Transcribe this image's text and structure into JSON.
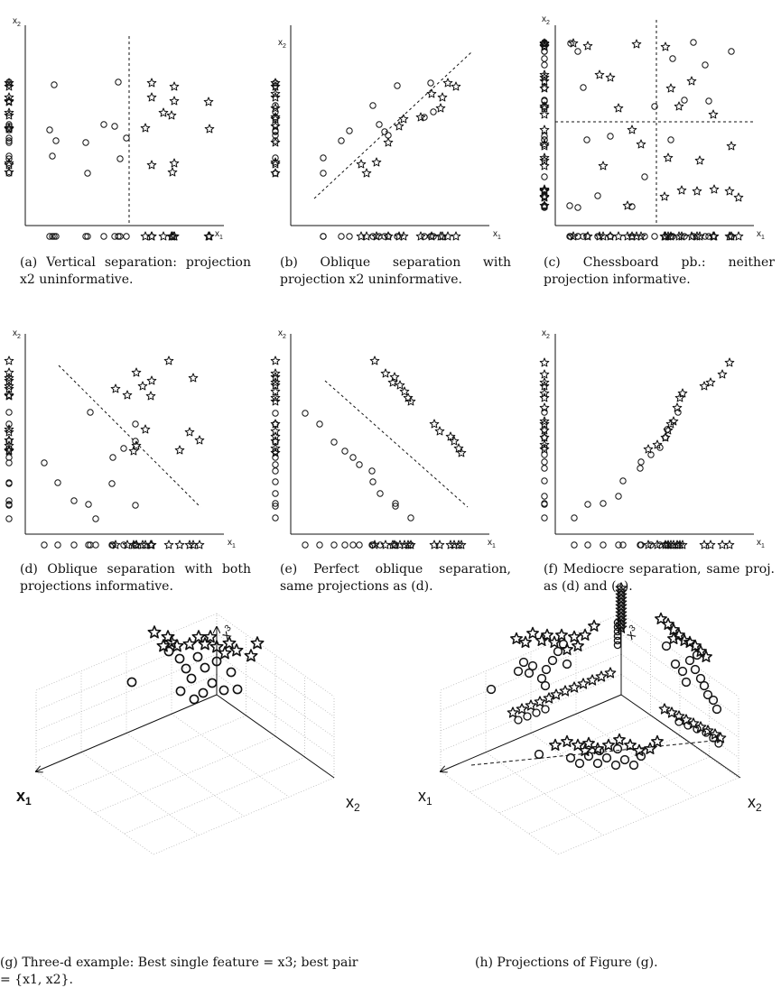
{
  "panels": [
    {
      "id": "a",
      "caption": "(a) Vertical separation: projection x2 uninformative.",
      "xlabel": "x1",
      "ylabel": "x2"
    },
    {
      "id": "b",
      "caption": "(b) Oblique separation with projection x2 uninformative.",
      "xlabel": "x1",
      "ylabel": "x2"
    },
    {
      "id": "c",
      "caption": "(c) Chessboard pb.: neither projection informative.",
      "xlabel": "x1",
      "ylabel": "x2"
    },
    {
      "id": "d",
      "caption": "(d) Oblique separation with both projections informative.",
      "xlabel": "x1",
      "ylabel": "x2"
    },
    {
      "id": "e",
      "caption": "(e) Perfect oblique separation, same projections as (d).",
      "xlabel": "x1",
      "ylabel": "x2"
    },
    {
      "id": "f",
      "caption": "(f) Mediocre separation, same proj. as (d) and (e).",
      "xlabel": "x1",
      "ylabel": "x2"
    },
    {
      "id": "g",
      "caption": "(g) Three-d example: Best single feature = x3; best pair = {x1, x2}.",
      "xlabel": "x1",
      "ylabel": "x2",
      "zlabel": "x3"
    },
    {
      "id": "h",
      "caption": "(h) Projections of Figure (g).",
      "xlabel": "x1",
      "ylabel": "x2",
      "zlabel": "x3"
    }
  ],
  "legend_markers": [
    "circle",
    "star"
  ],
  "colors": {
    "ink": "#111111",
    "grid": "#b8b8b8"
  }
}
